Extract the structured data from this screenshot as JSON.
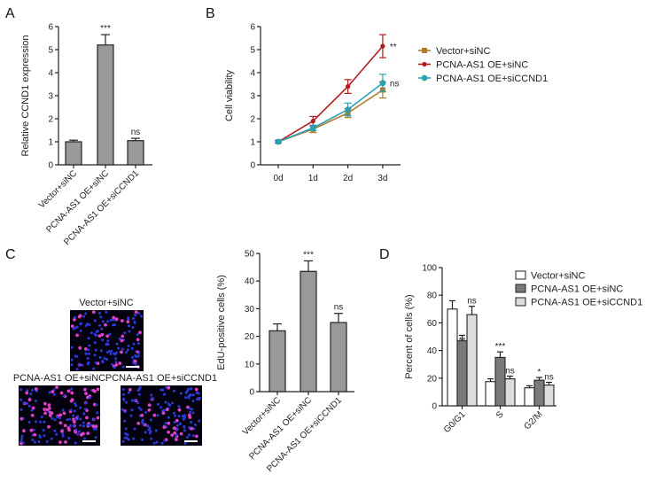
{
  "panels": {
    "a": "A",
    "b": "B",
    "c": "C",
    "d": "D"
  },
  "micrographs": [
    {
      "title": "Vector+siNC",
      "edu_positive_share": 0.2
    },
    {
      "title": "PCNA-AS1 OE+siNC",
      "edu_positive_share": 0.4
    },
    {
      "title": "PCNA-AS1 OE+siCCND1",
      "edu_positive_share": 0.22
    }
  ],
  "chart_data": [
    {
      "panel": "A",
      "type": "bar",
      "categories": [
        "Vector+siNC",
        "PCNA-AS1 OE+siNC",
        "PCNA-AS1 OE+siCCND1"
      ],
      "values": [
        1.0,
        5.2,
        1.05
      ],
      "errors": [
        0.07,
        0.45,
        0.1
      ],
      "annotations": [
        "",
        "***",
        "ns"
      ],
      "xlabel": "",
      "ylabel": "Relative CCND1 expression",
      "ylim": [
        0,
        6
      ],
      "yticks": [
        "0",
        "1",
        "2",
        "3",
        "4",
        "5",
        "6"
      ],
      "bar_color": "#999999"
    },
    {
      "panel": "B",
      "type": "line",
      "x": [
        "0d",
        "1d",
        "2d",
        "3d"
      ],
      "series": [
        {
          "name": "Vector+siNC",
          "values": [
            1.0,
            1.55,
            2.25,
            3.25
          ],
          "errors": [
            0.05,
            0.15,
            0.2,
            0.35
          ],
          "color": "#b07a2a",
          "marker": "square",
          "annotation": ""
        },
        {
          "name": "PCNA-AS1 OE+siNC",
          "values": [
            1.0,
            1.9,
            3.4,
            5.15
          ],
          "errors": [
            0.05,
            0.2,
            0.3,
            0.5
          ],
          "color": "#b01c1c",
          "marker": "diamond",
          "annotation": "**"
        },
        {
          "name": "PCNA-AS1 OE+siCCND1",
          "values": [
            1.0,
            1.6,
            2.4,
            3.55
          ],
          "errors": [
            0.05,
            0.12,
            0.28,
            0.38
          ],
          "color": "#2aa0b4",
          "marker": "circle",
          "annotation": "ns"
        }
      ],
      "xlabel": "",
      "ylabel": "Cell viability",
      "ylim": [
        0,
        6
      ],
      "yticks": [
        "0",
        "1",
        "2",
        "3",
        "4",
        "5",
        "6"
      ],
      "legend": "right"
    },
    {
      "panel": "C",
      "type": "bar",
      "categories": [
        "Vector+siNC",
        "PCNA-AS1 OE+siNC",
        "PCNA-AS1 OE+siCCND1"
      ],
      "values": [
        22,
        43.5,
        25
      ],
      "errors": [
        2.5,
        3.8,
        3.3
      ],
      "annotations": [
        "",
        "***",
        "ns"
      ],
      "xlabel": "",
      "ylabel": "EdU-positive cells (%)",
      "ylim": [
        0,
        50
      ],
      "yticks": [
        "0",
        "10",
        "20",
        "30",
        "40",
        "50"
      ],
      "bar_color": "#999999"
    },
    {
      "panel": "D",
      "type": "bar",
      "categories": [
        "G0/G1",
        "S",
        "G2/M"
      ],
      "series": [
        {
          "name": "Vector+siNC",
          "values": [
            70,
            17.5,
            13
          ],
          "errors": [
            6,
            2,
            1.5
          ],
          "annotations": [
            "",
            "",
            ""
          ],
          "color": "#ffffff"
        },
        {
          "name": "PCNA-AS1 OE+siNC",
          "values": [
            47,
            35,
            18.5
          ],
          "errors": [
            4,
            4,
            2
          ],
          "annotations": [
            "**",
            "***",
            "*"
          ],
          "color": "#7a7a7a"
        },
        {
          "name": "PCNA-AS1 OE+siCCND1",
          "values": [
            66,
            19.5,
            15
          ],
          "errors": [
            6,
            2,
            2
          ],
          "annotations": [
            "ns",
            "ns",
            "ns"
          ],
          "color": "#dcdcdc"
        }
      ],
      "xlabel": "",
      "ylabel": "Percent of cells (%)",
      "ylim": [
        0,
        100
      ],
      "yticks": [
        "0",
        "20",
        "40",
        "60",
        "80",
        "100"
      ],
      "legend": "top-right"
    }
  ]
}
